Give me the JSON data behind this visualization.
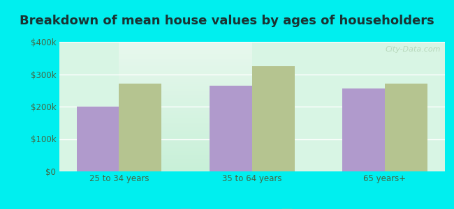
{
  "title": "Breakdown of mean house values by ages of householders",
  "categories": [
    "25 to 34 years",
    "35 to 64 years",
    "65 years+"
  ],
  "series": {
    "Germantown Hills": [
      200000,
      265000,
      255000
    ],
    "Illinois": [
      270000,
      325000,
      270000
    ]
  },
  "bar_colors": {
    "Germantown Hills": "#b09acc",
    "Illinois": "#b5c490"
  },
  "ylim": [
    0,
    400000
  ],
  "yticks": [
    0,
    100000,
    200000,
    300000,
    400000
  ],
  "ytick_labels": [
    "$0",
    "$100k",
    "$200k",
    "$300k",
    "$400k"
  ],
  "background_color": "#00efef",
  "plot_bg_color": "#d8f5e4",
  "title_fontsize": 13,
  "bar_width": 0.32,
  "watermark": "City-Data.com"
}
